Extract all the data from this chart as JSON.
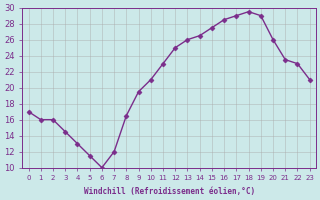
{
  "x": [
    0,
    1,
    2,
    3,
    4,
    5,
    6,
    7,
    8,
    9,
    10,
    11,
    12,
    13,
    14,
    15,
    16,
    17,
    18,
    19,
    20,
    21,
    22,
    23
  ],
  "y": [
    17,
    16,
    16,
    14.5,
    13,
    11.5,
    10,
    12,
    16.5,
    19.5,
    21,
    23,
    25,
    26,
    26.5,
    27.5,
    28.5,
    29,
    29.5,
    29,
    26,
    23.5,
    23,
    21
  ],
  "line_color": "#7b2d8b",
  "marker": "D",
  "marker_size": 2.5,
  "bg_color": "#cce9e9",
  "grid_color": "#aaaaaa",
  "xlabel": "Windchill (Refroidissement éolien,°C)",
  "xlim": [
    -0.5,
    23.5
  ],
  "ylim": [
    10,
    30
  ],
  "yticks": [
    10,
    12,
    14,
    16,
    18,
    20,
    22,
    24,
    26,
    28,
    30
  ],
  "xticks": [
    0,
    1,
    2,
    3,
    4,
    5,
    6,
    7,
    8,
    9,
    10,
    11,
    12,
    13,
    14,
    15,
    16,
    17,
    18,
    19,
    20,
    21,
    22,
    23
  ],
  "label_color": "#7b2d8b",
  "tick_color": "#7b2d8b"
}
